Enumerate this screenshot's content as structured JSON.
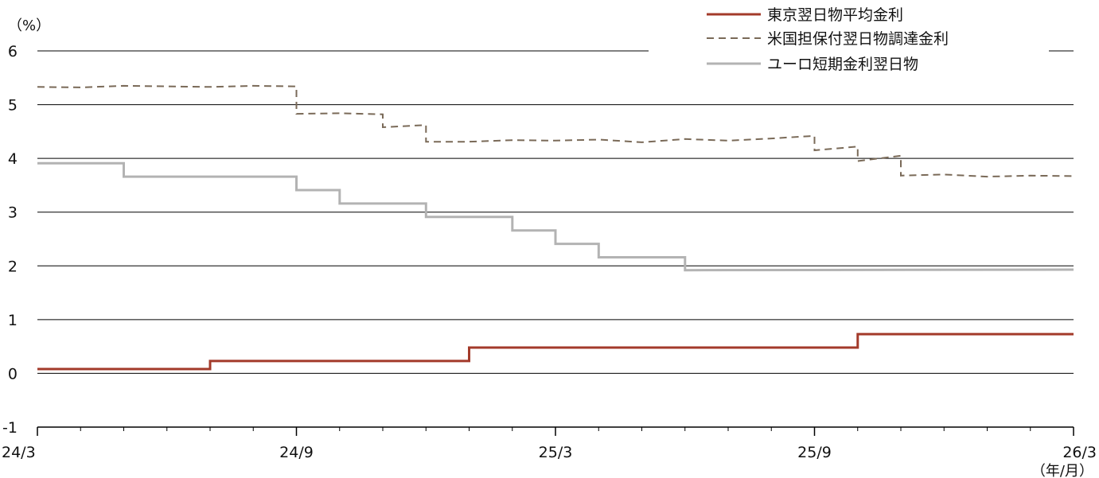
{
  "chart_data": {
    "type": "line",
    "y_unit": "（%）",
    "x_unit": "（年/月）",
    "ylim": [
      -1,
      6
    ],
    "yticks": [
      "-1",
      "0",
      "1",
      "2",
      "3",
      "4",
      "5",
      "6"
    ],
    "xticks": [
      "24/3",
      "24/9",
      "25/3",
      "25/9",
      "26/3"
    ],
    "grid": true,
    "legend_position": "top-right",
    "series": [
      {
        "name": "東京翌日物平均金利",
        "color": "#a33a2a",
        "style": "solid",
        "points": [
          [
            "24/3",
            0.08
          ],
          [
            "24/7",
            0.08
          ],
          [
            "24/7",
            0.23
          ],
          [
            "25/1",
            0.23
          ],
          [
            "25/1",
            0.48
          ],
          [
            "25/10",
            0.48
          ],
          [
            "25/10",
            0.73
          ],
          [
            "26/3",
            0.73
          ]
        ]
      },
      {
        "name": "米国担保付翌日物調達金利",
        "color": "#7a6a58",
        "style": "dashed",
        "points": [
          [
            "24/3",
            5.33
          ],
          [
            "24/4",
            5.32
          ],
          [
            "24/5",
            5.35
          ],
          [
            "24/6",
            5.34
          ],
          [
            "24/7",
            5.33
          ],
          [
            "24/8",
            5.35
          ],
          [
            "24/9",
            5.34
          ],
          [
            "24/9",
            4.83
          ],
          [
            "24/10",
            4.84
          ],
          [
            "24/11",
            4.82
          ],
          [
            "24/11",
            4.58
          ],
          [
            "24/12",
            4.62
          ],
          [
            "24/12",
            4.31
          ],
          [
            "25/1",
            4.31
          ],
          [
            "25/2",
            4.34
          ],
          [
            "25/3",
            4.33
          ],
          [
            "25/4",
            4.35
          ],
          [
            "25/5",
            4.3
          ],
          [
            "25/6",
            4.36
          ],
          [
            "25/7",
            4.33
          ],
          [
            "25/8",
            4.37
          ],
          [
            "25/9",
            4.42
          ],
          [
            "25/9",
            4.15
          ],
          [
            "25/10",
            4.22
          ],
          [
            "25/10",
            3.95
          ],
          [
            "25/11",
            4.05
          ],
          [
            "25/11",
            3.68
          ],
          [
            "25/12",
            3.7
          ],
          [
            "26/1",
            3.66
          ],
          [
            "26/2",
            3.68
          ],
          [
            "26/3",
            3.67
          ]
        ]
      },
      {
        "name": "ユーロ短期金利翌日物",
        "color": "#b3b3b3",
        "style": "solid",
        "points": [
          [
            "24/3",
            3.91
          ],
          [
            "24/5",
            3.91
          ],
          [
            "24/5",
            3.66
          ],
          [
            "24/9",
            3.66
          ],
          [
            "24/9",
            3.41
          ],
          [
            "24/10",
            3.41
          ],
          [
            "24/10",
            3.16
          ],
          [
            "24/12",
            3.16
          ],
          [
            "24/12",
            2.91
          ],
          [
            "25/2",
            2.91
          ],
          [
            "25/2",
            2.66
          ],
          [
            "25/3",
            2.66
          ],
          [
            "25/3",
            2.41
          ],
          [
            "25/4",
            2.41
          ],
          [
            "25/4",
            2.16
          ],
          [
            "25/6",
            2.16
          ],
          [
            "25/6",
            1.92
          ],
          [
            "26/3",
            1.93
          ]
        ]
      }
    ]
  }
}
